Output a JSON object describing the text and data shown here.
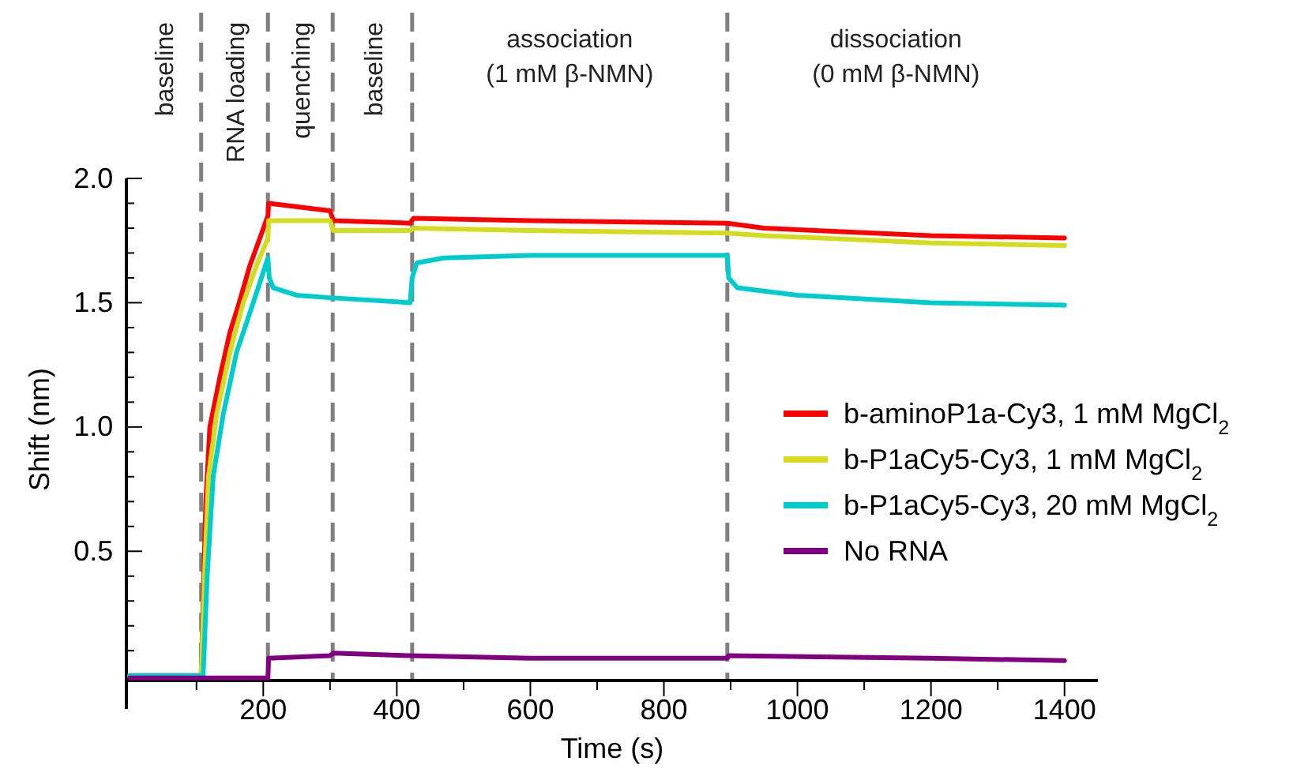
{
  "chart_data": {
    "type": "line",
    "xlabel": "Time (s)",
    "ylabel": "Shift (nm)",
    "xlim": [
      -5,
      1450
    ],
    "ylim": [
      -0.02,
      2.0
    ],
    "xticks": [
      {
        "value": 100,
        "label": null
      },
      200,
      {
        "value": 300,
        "label": null
      },
      400,
      {
        "value": 500,
        "label": null
      },
      600,
      {
        "value": 700,
        "label": null
      },
      800,
      {
        "value": 900,
        "label": null
      },
      1000,
      {
        "value": 1100,
        "label": null
      },
      1200,
      {
        "value": 1300,
        "label": null
      },
      1400
    ],
    "yticks": [
      {
        "value": 0,
        "label": null
      },
      {
        "value": 0.1,
        "label": null
      },
      {
        "value": 0.2,
        "label": null
      },
      {
        "value": 0.3,
        "label": null
      },
      {
        "value": 0.4,
        "label": null
      },
      0.5,
      {
        "value": 0.6,
        "label": null
      },
      {
        "value": 0.7,
        "label": null
      },
      {
        "value": 0.8,
        "label": null
      },
      {
        "value": 0.9,
        "label": null
      },
      {
        "value": 1,
        "label": "1.0"
      },
      {
        "value": 1.1,
        "label": null
      },
      {
        "value": 1.2,
        "label": null
      },
      {
        "value": 1.3,
        "label": null
      },
      {
        "value": 1.4,
        "label": null
      },
      1.5,
      {
        "value": 1.6,
        "label": null
      },
      {
        "value": 1.7,
        "label": null
      },
      {
        "value": 1.8,
        "label": null
      },
      {
        "value": 1.9,
        "label": null
      },
      {
        "value": 2,
        "label": "2.0"
      }
    ],
    "grid": false,
    "legend": "right",
    "marker": "none",
    "line_style": "solid",
    "ref_lines": [
      {
        "axis": "x",
        "value": 107,
        "color": "#808080",
        "line_style": "dashed"
      },
      {
        "axis": "x",
        "value": 207,
        "color": "#808080",
        "line_style": "dashed"
      },
      {
        "axis": "x",
        "value": 304,
        "color": "#808080",
        "line_style": "dashed"
      },
      {
        "axis": "x",
        "value": 423,
        "color": "#808080",
        "line_style": "dashed"
      },
      {
        "axis": "x",
        "value": 895,
        "color": "#808080",
        "line_style": "dashed"
      }
    ],
    "annotations": [
      "baseline",
      "RNA loading",
      "quenching",
      "baseline",
      "association\n(1 mM β-NMN)",
      "dissociation\n(0 mM β-NMN)"
    ],
    "series": [
      {
        "name": "b-aminoP1a-Cy3, 1 mM MgCl$_{2}$",
        "color": "#ff0000",
        "x": [
          0,
          107,
          110,
          114,
          120,
          135,
          150,
          164,
          180,
          195,
          207,
          208,
          300,
          305,
          420,
          425,
          600,
          895,
          950,
          1200,
          1400
        ],
        "values": [
          0,
          0,
          0.3,
          0.7,
          1.0,
          1.2,
          1.38,
          1.5,
          1.65,
          1.76,
          1.85,
          1.9,
          1.87,
          1.83,
          1.82,
          1.84,
          1.83,
          1.82,
          1.8,
          1.77,
          1.76
        ]
      },
      {
        "name": "b-P1aCy5-Cy3, 1 mM MgCl$_{2}$",
        "color": "#d4dc1e",
        "x": [
          0,
          107,
          112,
          118,
          130,
          150,
          170,
          190,
          207,
          208,
          300,
          305,
          420,
          425,
          600,
          895,
          950,
          1200,
          1400
        ],
        "values": [
          0,
          0,
          0.4,
          0.8,
          1.05,
          1.3,
          1.5,
          1.65,
          1.76,
          1.83,
          1.83,
          1.79,
          1.79,
          1.8,
          1.79,
          1.78,
          1.77,
          1.74,
          1.73
        ]
      },
      {
        "name": "b-P1aCy5-Cy3, 20 mM MgCl$_{2}$",
        "color": "#00cccc",
        "x": [
          0,
          110,
          116,
          125,
          140,
          160,
          185,
          207,
          209,
          215,
          250,
          300,
          420,
          423,
          430,
          470,
          600,
          895,
          897,
          910,
          1000,
          1200,
          1400
        ],
        "values": [
          0,
          0,
          0.4,
          0.8,
          1.05,
          1.3,
          1.5,
          1.68,
          1.6,
          1.56,
          1.53,
          1.52,
          1.5,
          1.6,
          1.66,
          1.68,
          1.69,
          1.69,
          1.6,
          1.56,
          1.53,
          1.5,
          1.49
        ]
      },
      {
        "name": "No RNA",
        "color": "#800080",
        "x": [
          0,
          207,
          208,
          300,
          305,
          420,
          600,
          895,
          897,
          1200,
          1400
        ],
        "values": [
          -0.01,
          -0.01,
          0.07,
          0.08,
          0.09,
          0.08,
          0.07,
          0.07,
          0.08,
          0.07,
          0.06
        ]
      }
    ]
  }
}
